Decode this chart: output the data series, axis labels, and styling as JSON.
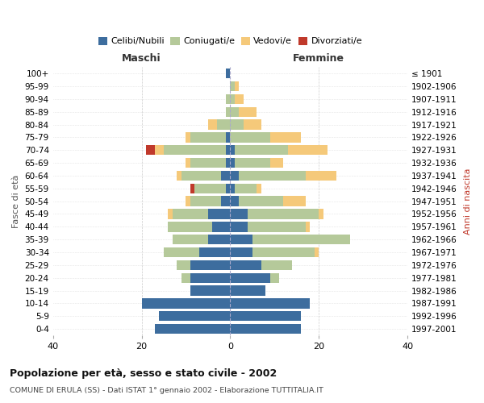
{
  "age_groups": [
    "0-4",
    "5-9",
    "10-14",
    "15-19",
    "20-24",
    "25-29",
    "30-34",
    "35-39",
    "40-44",
    "45-49",
    "50-54",
    "55-59",
    "60-64",
    "65-69",
    "70-74",
    "75-79",
    "80-84",
    "85-89",
    "90-94",
    "95-99",
    "100+"
  ],
  "birth_years": [
    "1997-2001",
    "1992-1996",
    "1987-1991",
    "1982-1986",
    "1977-1981",
    "1972-1976",
    "1967-1971",
    "1962-1966",
    "1957-1961",
    "1952-1956",
    "1947-1951",
    "1942-1946",
    "1937-1941",
    "1932-1936",
    "1927-1931",
    "1922-1926",
    "1917-1921",
    "1912-1916",
    "1907-1911",
    "1902-1906",
    "≤ 1901"
  ],
  "male_celibo": [
    17,
    16,
    20,
    9,
    9,
    9,
    7,
    5,
    4,
    5,
    2,
    1,
    2,
    1,
    1,
    1,
    0,
    0,
    0,
    0,
    1
  ],
  "male_coniugato": [
    0,
    0,
    0,
    0,
    2,
    3,
    8,
    8,
    10,
    8,
    7,
    7,
    9,
    8,
    14,
    8,
    3,
    1,
    1,
    0,
    0
  ],
  "male_vedovo": [
    0,
    0,
    0,
    0,
    0,
    0,
    0,
    0,
    0,
    1,
    1,
    0,
    1,
    1,
    2,
    1,
    2,
    0,
    0,
    0,
    0
  ],
  "male_divorziato": [
    0,
    0,
    0,
    0,
    0,
    0,
    0,
    0,
    0,
    0,
    0,
    1,
    0,
    0,
    2,
    0,
    0,
    0,
    0,
    0,
    0
  ],
  "female_celibo": [
    16,
    16,
    18,
    8,
    9,
    7,
    5,
    5,
    4,
    4,
    2,
    1,
    2,
    1,
    1,
    0,
    0,
    0,
    0,
    0,
    0
  ],
  "female_coniugato": [
    0,
    0,
    0,
    0,
    2,
    7,
    14,
    22,
    13,
    16,
    10,
    5,
    15,
    8,
    12,
    9,
    3,
    2,
    1,
    1,
    0
  ],
  "female_vedovo": [
    0,
    0,
    0,
    0,
    0,
    0,
    1,
    0,
    1,
    1,
    5,
    1,
    7,
    3,
    9,
    7,
    4,
    4,
    2,
    1,
    0
  ],
  "female_divorziato": [
    0,
    0,
    0,
    0,
    0,
    0,
    0,
    0,
    0,
    0,
    0,
    0,
    0,
    0,
    0,
    0,
    0,
    0,
    0,
    0,
    0
  ],
  "color_celibo": "#3d6d9e",
  "color_coniugato": "#b5c99a",
  "color_vedovo": "#f5c97a",
  "color_divorziato": "#c0392b",
  "title": "Popolazione per età, sesso e stato civile - 2002",
  "subtitle": "COMUNE DI ERULA (SS) - Dati ISTAT 1° gennaio 2002 - Elaborazione TUTTITALIA.IT",
  "xlabel_left": "Maschi",
  "xlabel_right": "Femmine",
  "ylabel_left": "Fasce di età",
  "ylabel_right": "Anni di nascita",
  "xlim": 40,
  "background_color": "#ffffff"
}
